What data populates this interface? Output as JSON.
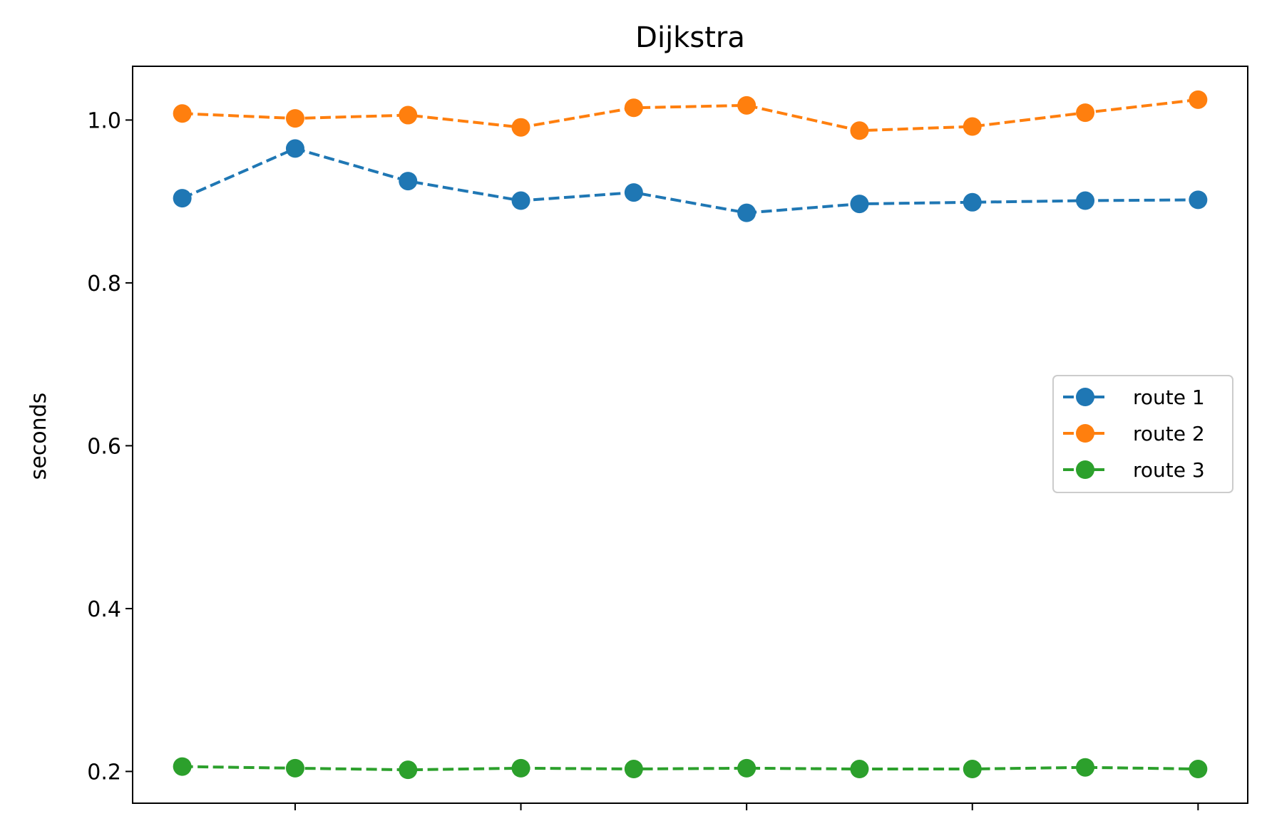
{
  "chart_data": {
    "type": "line",
    "title": "Dijkstra",
    "xlabel": "",
    "ylabel": "seconds",
    "x": [
      0,
      1,
      2,
      3,
      4,
      5,
      6,
      7,
      8,
      9
    ],
    "xlim": [
      -0.44,
      9.44
    ],
    "ylim": [
      0.161,
      1.066
    ],
    "yticks": [
      0.2,
      0.4,
      0.6,
      0.8,
      1.0
    ],
    "ytick_labels": [
      "0.2",
      "0.4",
      "0.6",
      "0.8",
      "1.0"
    ],
    "xticks": [
      1,
      3,
      5,
      7,
      9
    ],
    "xtick_labels": [
      "",
      "",
      "",
      "",
      ""
    ],
    "grid": false,
    "legend_position": "center-right",
    "series": [
      {
        "name": "route 1",
        "color": "#1f77b4",
        "line_style": "dashed",
        "marker": "circle",
        "values": [
          0.904,
          0.965,
          0.925,
          0.901,
          0.911,
          0.886,
          0.897,
          0.899,
          0.901,
          0.902
        ]
      },
      {
        "name": "route 2",
        "color": "#ff7f0e",
        "line_style": "dashed",
        "marker": "circle",
        "values": [
          1.008,
          1.002,
          1.006,
          0.991,
          1.015,
          1.018,
          0.987,
          0.992,
          1.009,
          1.025
        ]
      },
      {
        "name": "route 3",
        "color": "#2ca02c",
        "line_style": "dashed",
        "marker": "circle",
        "values": [
          0.206,
          0.204,
          0.202,
          0.204,
          0.203,
          0.204,
          0.203,
          0.203,
          0.205,
          0.203
        ]
      }
    ]
  }
}
